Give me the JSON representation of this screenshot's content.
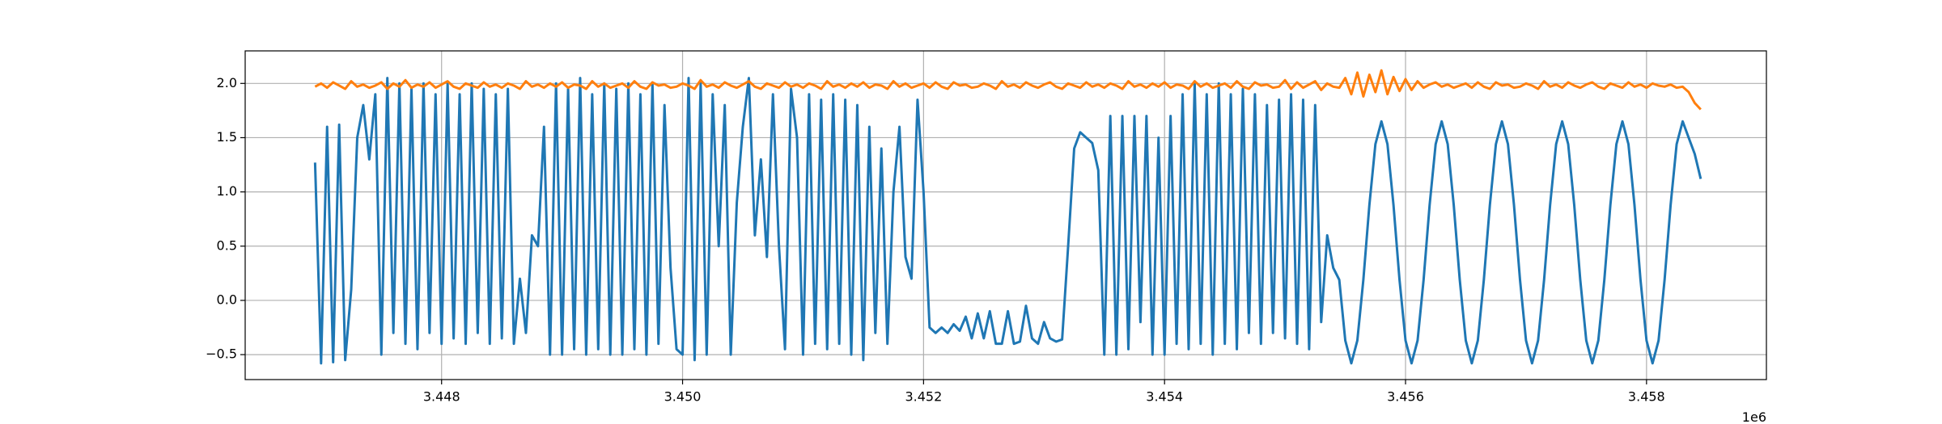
{
  "chart_data": {
    "type": "line",
    "x_offset_label": "1e6",
    "x": [
      3446950,
      3447000,
      3447050,
      3447100,
      3447150,
      3447200,
      3447250,
      3447300,
      3447350,
      3447400,
      3447450,
      3447500,
      3447550,
      3447600,
      3447650,
      3447700,
      3447750,
      3447800,
      3447850,
      3447900,
      3447950,
      3448000,
      3448050,
      3448100,
      3448150,
      3448200,
      3448250,
      3448300,
      3448350,
      3448400,
      3448450,
      3448500,
      3448550,
      3448600,
      3448650,
      3448700,
      3448750,
      3448800,
      3448850,
      3448900,
      3448950,
      3449000,
      3449050,
      3449100,
      3449150,
      3449200,
      3449250,
      3449300,
      3449350,
      3449400,
      3449450,
      3449500,
      3449550,
      3449600,
      3449650,
      3449700,
      3449750,
      3449800,
      3449850,
      3449900,
      3449950,
      3450000,
      3450050,
      3450100,
      3450150,
      3450200,
      3450250,
      3450300,
      3450350,
      3450400,
      3450450,
      3450500,
      3450550,
      3450600,
      3450650,
      3450700,
      3450750,
      3450800,
      3450850,
      3450900,
      3450950,
      3451000,
      3451050,
      3451100,
      3451150,
      3451200,
      3451250,
      3451300,
      3451350,
      3451400,
      3451450,
      3451500,
      3451550,
      3451600,
      3451650,
      3451700,
      3451750,
      3451800,
      3451850,
      3451900,
      3451950,
      3452000,
      3452050,
      3452100,
      3452150,
      3452200,
      3452250,
      3452300,
      3452350,
      3452400,
      3452450,
      3452500,
      3452550,
      3452600,
      3452650,
      3452700,
      3452750,
      3452800,
      3452850,
      3452900,
      3452950,
      3453000,
      3453050,
      3453100,
      3453150,
      3453200,
      3453250,
      3453300,
      3453350,
      3453400,
      3453450,
      3453500,
      3453550,
      3453600,
      3453650,
      3453700,
      3453750,
      3453800,
      3453850,
      3453900,
      3453950,
      3454000,
      3454050,
      3454100,
      3454150,
      3454200,
      3454250,
      3454300,
      3454350,
      3454400,
      3454450,
      3454500,
      3454550,
      3454600,
      3454650,
      3454700,
      3454750,
      3454800,
      3454850,
      3454900,
      3454950,
      3455000,
      3455050,
      3455100,
      3455150,
      3455200,
      3455250,
      3455300,
      3455350,
      3455400,
      3455450,
      3455500,
      3455550,
      3455600,
      3455650,
      3455700,
      3455750,
      3455800,
      3455850,
      3455900,
      3455950,
      3456000,
      3456050,
      3456100,
      3456150,
      3456200,
      3456250,
      3456300,
      3456350,
      3456400,
      3456450,
      3456500,
      3456550,
      3456600,
      3456650,
      3456700,
      3456750,
      3456800,
      3456850,
      3456900,
      3456950,
      3457000,
      3457050,
      3457100,
      3457150,
      3457200,
      3457250,
      3457300,
      3457350,
      3457400,
      3457450,
      3457500,
      3457550,
      3457600,
      3457650,
      3457700,
      3457750,
      3457800,
      3457850,
      3457900,
      3457950,
      3458000,
      3458050,
      3458100,
      3458150,
      3458200,
      3458250,
      3458300,
      3458350,
      3458400,
      3458450
    ],
    "series": [
      {
        "color": "#1f77b4",
        "values": [
          1.27,
          -0.58,
          1.6,
          -0.57,
          1.62,
          -0.55,
          0.1,
          1.5,
          1.8,
          1.3,
          1.9,
          -0.5,
          2.05,
          -0.3,
          2.0,
          -0.4,
          1.95,
          -0.45,
          2.0,
          -0.3,
          1.9,
          -0.4,
          2.0,
          -0.35,
          1.9,
          -0.4,
          2.0,
          -0.3,
          1.95,
          -0.4,
          1.9,
          -0.35,
          1.95,
          -0.4,
          0.2,
          -0.3,
          0.6,
          0.5,
          1.6,
          -0.5,
          2.0,
          -0.5,
          1.95,
          -0.45,
          2.05,
          -0.5,
          1.9,
          -0.45,
          2.0,
          -0.5,
          1.95,
          -0.5,
          2.0,
          -0.45,
          1.9,
          -0.5,
          2.0,
          -0.4,
          1.8,
          0.3,
          -0.45,
          -0.5,
          2.05,
          -0.55,
          2.0,
          -0.5,
          1.9,
          0.5,
          1.8,
          -0.5,
          0.9,
          1.6,
          2.05,
          0.6,
          1.3,
          0.4,
          1.9,
          0.5,
          -0.45,
          1.95,
          1.5,
          -0.5,
          1.9,
          -0.4,
          1.85,
          -0.45,
          1.9,
          -0.4,
          1.85,
          -0.5,
          1.8,
          -0.55,
          1.6,
          -0.3,
          1.4,
          -0.4,
          1.0,
          1.6,
          0.4,
          0.2,
          1.85,
          1.0,
          -0.25,
          -0.3,
          -0.25,
          -0.3,
          -0.22,
          -0.28,
          -0.15,
          -0.35,
          -0.12,
          -0.35,
          -0.1,
          -0.4,
          -0.4,
          -0.1,
          -0.4,
          -0.38,
          -0.05,
          -0.35,
          -0.4,
          -0.2,
          -0.35,
          -0.38,
          -0.36,
          0.5,
          1.4,
          1.55,
          1.5,
          1.45,
          1.2,
          -0.5,
          1.7,
          -0.5,
          1.7,
          -0.45,
          1.7,
          -0.2,
          1.7,
          -0.5,
          1.5,
          -0.5,
          1.7,
          -0.4,
          1.9,
          -0.45,
          2.0,
          -0.4,
          1.9,
          -0.5,
          2.0,
          -0.4,
          1.9,
          -0.45,
          1.95,
          -0.3,
          1.9,
          -0.4,
          1.8,
          -0.3,
          1.85,
          -0.35,
          1.9,
          -0.4,
          1.85,
          -0.45,
          1.8,
          -0.2,
          0.6,
          0.3,
          0.19,
          -0.37,
          -0.58,
          -0.37,
          0.19,
          0.88,
          1.44,
          1.65,
          1.44,
          0.88,
          0.19,
          -0.37,
          -0.58,
          -0.37,
          0.19,
          0.88,
          1.44,
          1.65,
          1.44,
          0.88,
          0.19,
          -0.37,
          -0.58,
          -0.37,
          0.19,
          0.88,
          1.44,
          1.65,
          1.44,
          0.88,
          0.19,
          -0.37,
          -0.58,
          -0.37,
          0.19,
          0.88,
          1.44,
          1.65,
          1.44,
          0.88,
          0.19,
          -0.37,
          -0.58,
          -0.37,
          0.19,
          0.88,
          1.44,
          1.65,
          1.44,
          0.88,
          0.19,
          -0.37,
          -0.58,
          -0.37,
          0.19,
          0.88,
          1.44,
          1.65,
          1.5,
          1.35,
          1.12
        ]
      },
      {
        "color": "#ff7f0e",
        "values": [
          1.97,
          2.0,
          1.96,
          2.01,
          1.98,
          1.95,
          2.02,
          1.97,
          1.99,
          1.96,
          1.98,
          2.01,
          1.95,
          2.0,
          1.97,
          2.03,
          1.96,
          1.99,
          1.97,
          2.01,
          1.96,
          1.99,
          2.02,
          1.97,
          1.95,
          2.0,
          1.98,
          1.96,
          2.01,
          1.97,
          1.99,
          1.96,
          2.0,
          1.98,
          1.95,
          2.02,
          1.97,
          1.99,
          1.96,
          2.0,
          1.97,
          2.01,
          1.96,
          1.99,
          1.98,
          1.95,
          2.02,
          1.97,
          2.0,
          1.96,
          1.98,
          2.0,
          1.96,
          2.02,
          1.97,
          1.95,
          2.01,
          1.98,
          1.99,
          1.96,
          1.97,
          2.0,
          1.98,
          1.95,
          2.03,
          1.97,
          1.99,
          1.96,
          2.01,
          1.98,
          1.96,
          1.99,
          2.02,
          1.97,
          1.95,
          2.0,
          1.98,
          1.96,
          2.01,
          1.97,
          1.99,
          1.96,
          2.0,
          1.98,
          1.95,
          2.02,
          1.97,
          1.99,
          1.96,
          2.0,
          1.97,
          2.01,
          1.96,
          1.99,
          1.98,
          1.95,
          2.02,
          1.97,
          2.0,
          1.96,
          1.98,
          2.0,
          1.96,
          2.01,
          1.97,
          1.95,
          2.01,
          1.98,
          1.99,
          1.96,
          1.97,
          2.0,
          1.98,
          1.95,
          2.02,
          1.97,
          1.99,
          1.96,
          2.01,
          1.98,
          1.96,
          1.99,
          2.01,
          1.97,
          1.95,
          2.0,
          1.98,
          1.96,
          2.01,
          1.97,
          1.99,
          1.96,
          2.0,
          1.98,
          1.95,
          2.02,
          1.97,
          1.99,
          1.96,
          2.0,
          1.97,
          2.01,
          1.96,
          1.99,
          1.98,
          1.95,
          2.02,
          1.97,
          2.0,
          1.96,
          1.98,
          2.0,
          1.96,
          2.02,
          1.97,
          1.95,
          2.01,
          1.98,
          1.99,
          1.96,
          1.97,
          2.03,
          1.95,
          2.01,
          1.96,
          1.99,
          2.02,
          1.94,
          2.0,
          1.97,
          1.96,
          2.05,
          1.9,
          2.1,
          1.88,
          2.08,
          1.92,
          2.12,
          1.9,
          2.06,
          1.93,
          2.04,
          1.94,
          2.02,
          1.96,
          1.99,
          2.01,
          1.97,
          1.99,
          1.96,
          1.98,
          2.0,
          1.96,
          2.01,
          1.97,
          1.95,
          2.01,
          1.98,
          1.99,
          1.96,
          1.97,
          2.0,
          1.98,
          1.95,
          2.02,
          1.97,
          1.99,
          1.96,
          2.01,
          1.98,
          1.96,
          1.99,
          2.01,
          1.97,
          1.95,
          2.0,
          1.98,
          1.96,
          2.01,
          1.97,
          1.99,
          1.96,
          2.0,
          1.98,
          1.97,
          1.99,
          1.96,
          1.97,
          1.92,
          1.82,
          1.76
        ]
      }
    ],
    "xlim": [
      3446370,
      3458995
    ],
    "ylim": [
      -0.73,
      2.3
    ],
    "xticks": [
      {
        "value": 3448000,
        "label": "3.448"
      },
      {
        "value": 3450000,
        "label": "3.450"
      },
      {
        "value": 3452000,
        "label": "3.452"
      },
      {
        "value": 3454000,
        "label": "3.454"
      },
      {
        "value": 3456000,
        "label": "3.456"
      },
      {
        "value": 3458000,
        "label": "3.458"
      }
    ],
    "yticks": [
      {
        "value": -0.5,
        "label": "−0.5"
      },
      {
        "value": 0,
        "label": "0.0"
      },
      0.5,
      {
        "value": 1,
        "label": "1.0"
      },
      1.5,
      {
        "value": 2,
        "label": "2.0"
      }
    ],
    "grid": true
  }
}
